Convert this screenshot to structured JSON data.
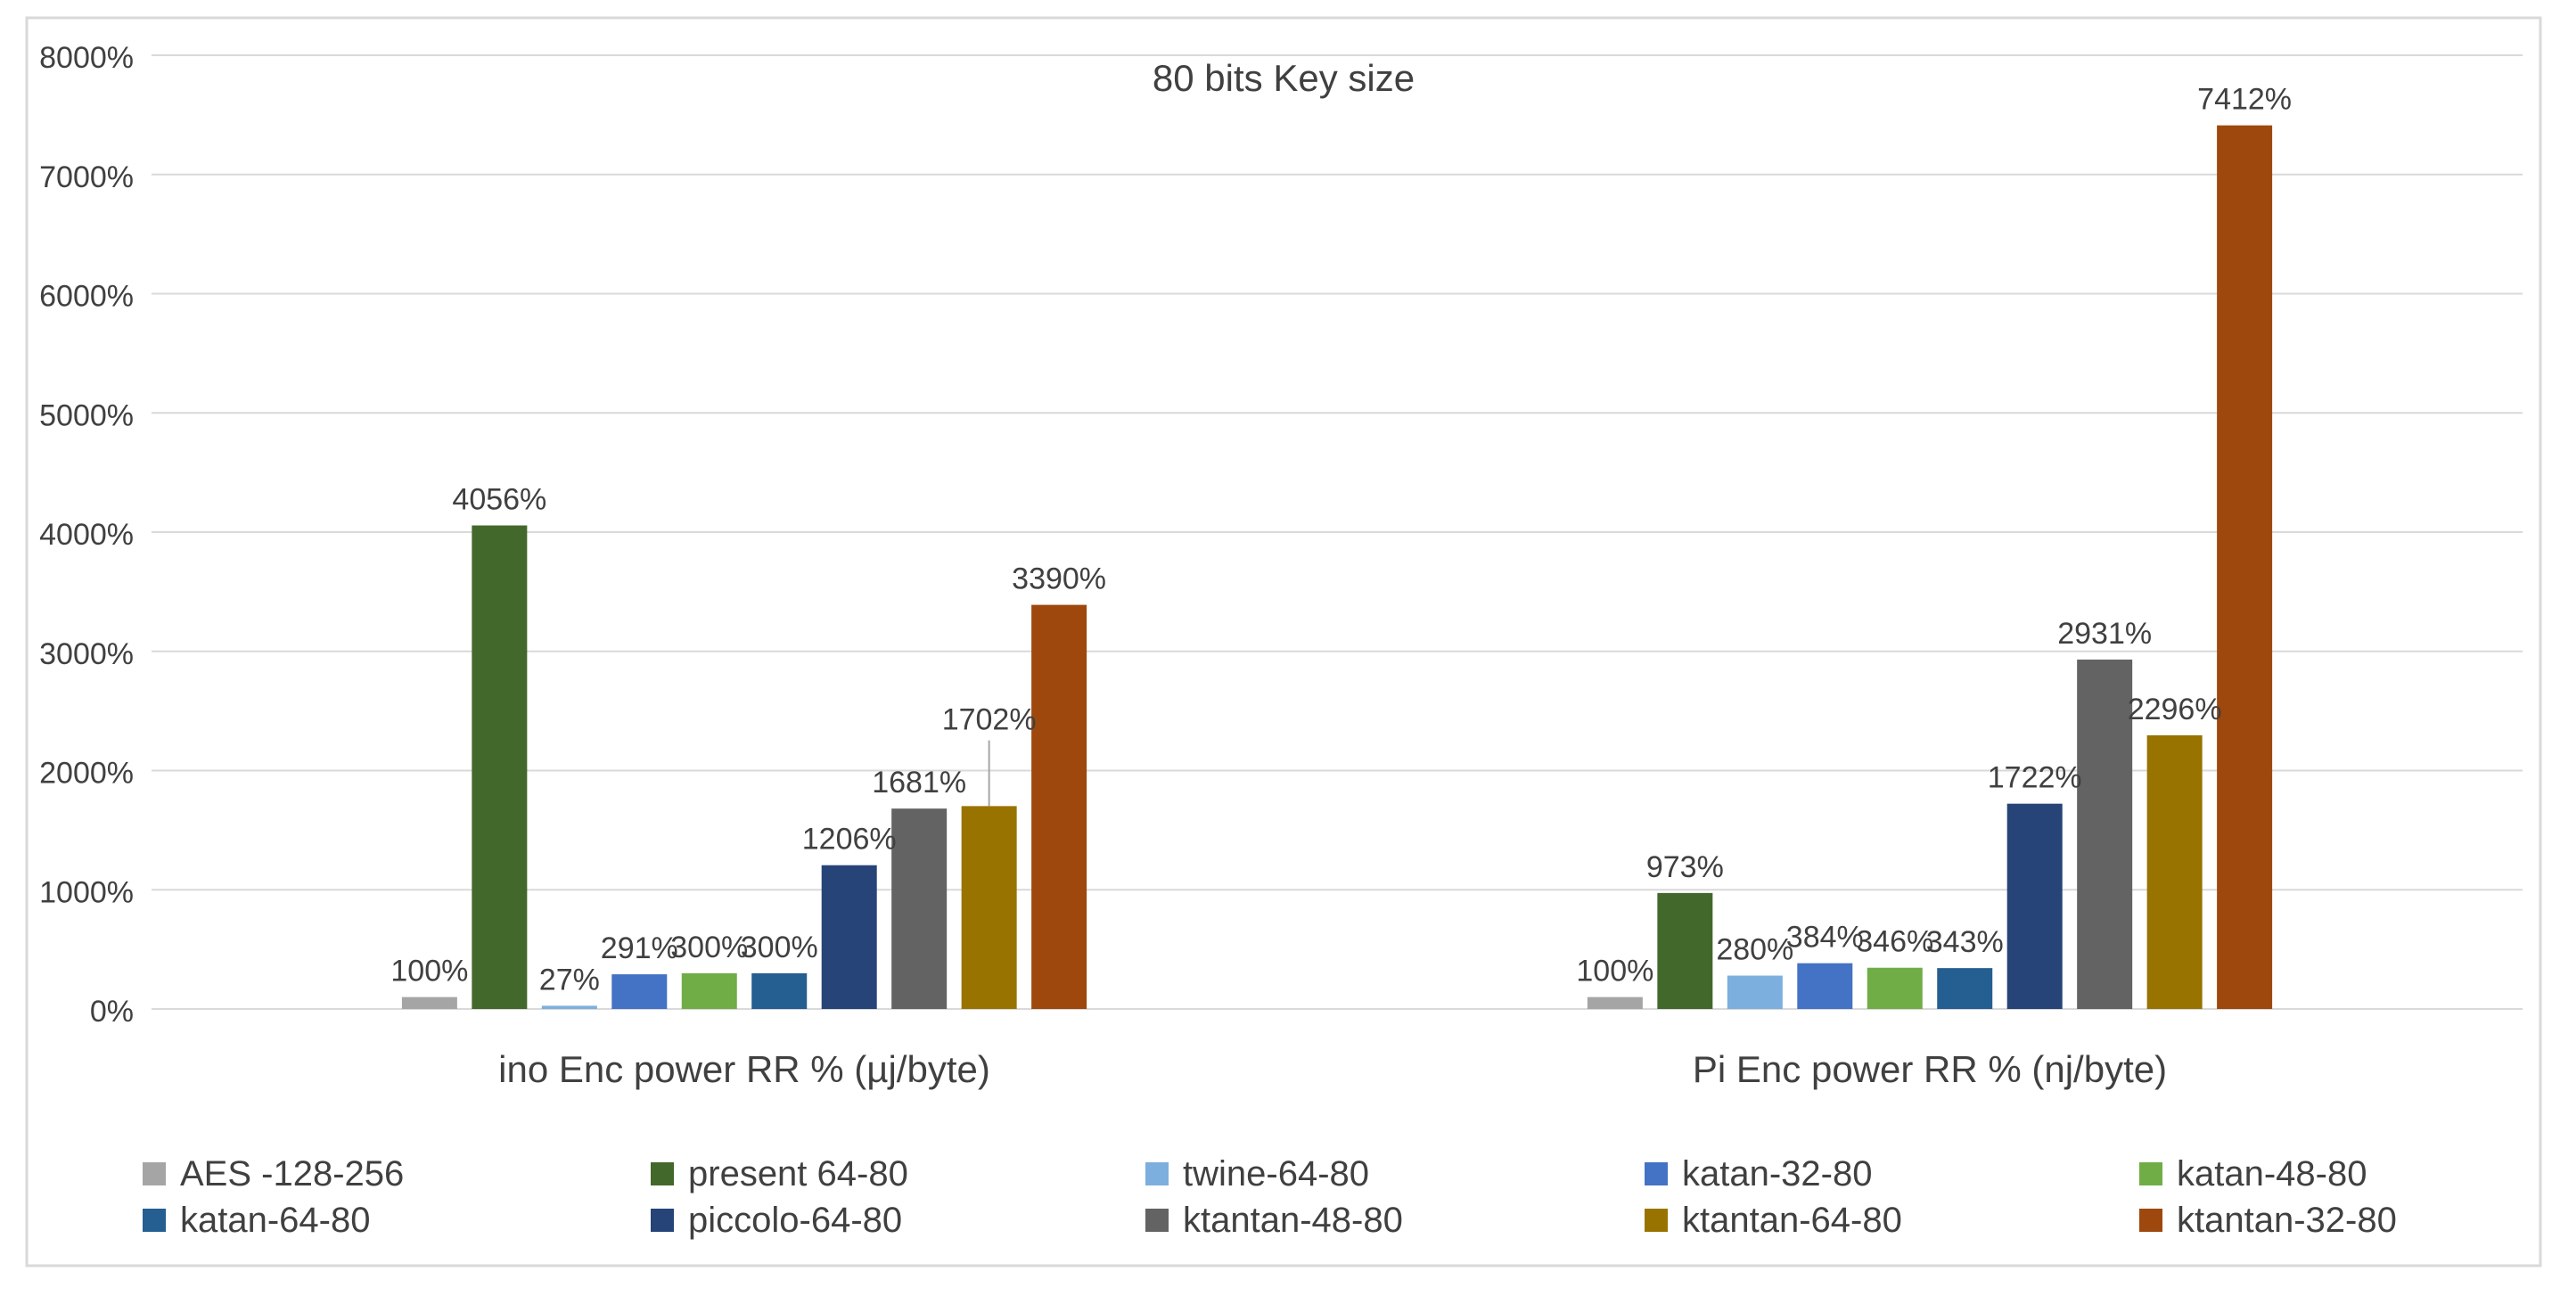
{
  "chart_data": {
    "type": "bar",
    "title": "80 bits Key size",
    "xlabel": "",
    "ylabel": "",
    "ylim": [
      0,
      8000
    ],
    "y_ticks": [
      0,
      1000,
      2000,
      3000,
      4000,
      5000,
      6000,
      7000,
      8000
    ],
    "y_tick_labels": [
      "0%",
      "1000%",
      "2000%",
      "3000%",
      "4000%",
      "5000%",
      "6000%",
      "7000%",
      "8000%"
    ],
    "grid": true,
    "legend_position": "bottom",
    "categories": [
      "ino Enc power RR % (µj/byte)",
      "Pi Enc power RR % (nj/byte)"
    ],
    "series": [
      {
        "name": "AES -128-256",
        "color": "#a5a5a5",
        "values": [
          100,
          100
        ],
        "labels": [
          "100%",
          "100%"
        ]
      },
      {
        "name": "present 64-80",
        "color": "#43682b",
        "values": [
          4056,
          973
        ],
        "labels": [
          "4056%",
          "973%"
        ]
      },
      {
        "name": "twine-64-80",
        "color": "#7cafdd",
        "values": [
          27,
          280
        ],
        "labels": [
          "27%",
          "280%"
        ]
      },
      {
        "name": "katan-32-80",
        "color": "#4472c4",
        "values": [
          291,
          384
        ],
        "labels": [
          "291%",
          "384%"
        ]
      },
      {
        "name": "katan-48-80",
        "color": "#70ad47",
        "values": [
          300,
          346
        ],
        "labels": [
          "300%",
          "346%"
        ]
      },
      {
        "name": "katan-64-80",
        "color": "#255e91",
        "values": [
          300,
          343
        ],
        "labels": [
          "300%",
          "343%"
        ]
      },
      {
        "name": "piccolo-64-80",
        "color": "#264478",
        "values": [
          1206,
          1722
        ],
        "labels": [
          "1206%",
          "1722%"
        ]
      },
      {
        "name": "ktantan-48-80",
        "color": "#636363",
        "values": [
          1681,
          2931
        ],
        "labels": [
          "1681%",
          "2931%"
        ]
      },
      {
        "name": "ktantan-64-80",
        "color": "#997300",
        "values": [
          1702,
          2296
        ],
        "labels": [
          "1702%",
          "2296%"
        ]
      },
      {
        "name": "ktantan-32-80",
        "color": "#9e480e",
        "values": [
          3390,
          7412
        ],
        "labels": [
          "3390%",
          "7412%"
        ]
      }
    ]
  }
}
